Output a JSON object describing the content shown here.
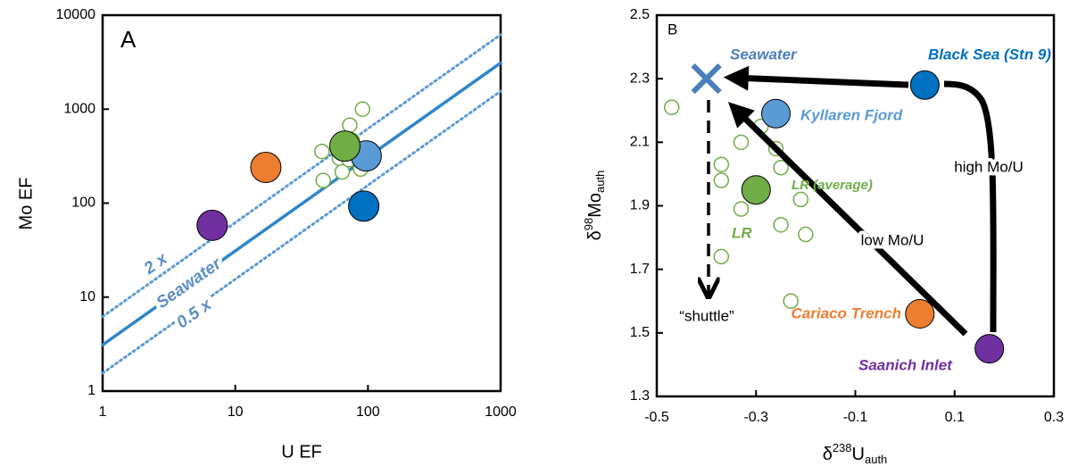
{
  "chart_data": [
    {
      "type": "scatter",
      "panel_label": "A",
      "log_scale": true,
      "xlabel": "U EF",
      "ylabel": "Mo EF",
      "xlim": [
        1,
        1000
      ],
      "ylim": [
        1,
        10000
      ],
      "xticks": [
        1,
        10,
        100,
        1000
      ],
      "yticks": [
        1,
        10,
        100,
        1000,
        10000
      ],
      "series": [
        {
          "name": "Seawater",
          "marker": "line",
          "line_style": "solid",
          "color": "#2e86c8",
          "x": [
            1,
            1000
          ],
          "values": [
            3.1,
            3100
          ]
        },
        {
          "name": "2 x",
          "marker": "line",
          "line_style": "dotted",
          "color": "#5b9bd5",
          "x": [
            1,
            1000
          ],
          "values": [
            6.2,
            6200
          ]
        },
        {
          "name": "0.5 x",
          "marker": "line",
          "line_style": "dotted",
          "color": "#5b9bd5",
          "x": [
            1,
            1000
          ],
          "values": [
            1.55,
            1550
          ]
        },
        {
          "marker": "circle",
          "color": "#7030a0",
          "x": [
            6.7
          ],
          "values": [
            58
          ]
        },
        {
          "marker": "circle",
          "color": "#ed7d31",
          "x": [
            17
          ],
          "values": [
            240
          ]
        },
        {
          "marker": "circle",
          "color": "#0070c0",
          "x": [
            93
          ],
          "values": [
            93
          ]
        },
        {
          "marker": "circle",
          "color": "#5b9bd5",
          "x": [
            97
          ],
          "values": [
            318
          ]
        },
        {
          "marker": "circle",
          "color": "#70ad47",
          "x": [
            67
          ],
          "values": [
            405
          ]
        },
        {
          "marker": "open-circle",
          "color": "#70ad47",
          "x": [
            45,
            46,
            61,
            64,
            76,
            73,
            91,
            88,
            72,
            59
          ],
          "values": [
            355,
            174,
            300,
            215,
            465,
            675,
            1000,
            230,
            290,
            425
          ]
        }
      ]
    },
    {
      "type": "scatter",
      "panel_label": "B",
      "log_scale": false,
      "xlabel": {
        "symbol": "δ",
        "sup": "238",
        "base": "U",
        "sub": "auth"
      },
      "ylabel": {
        "symbol": "δ",
        "sup": "98",
        "base": "Mo",
        "sub": "auth"
      },
      "xlim": [
        -0.5,
        0.3
      ],
      "ylim": [
        1.3,
        2.5
      ],
      "xticks": [
        -0.5,
        -0.3,
        -0.1,
        0.1,
        0.3
      ],
      "yticks": [
        1.3,
        1.5,
        1.7,
        1.9,
        2.1,
        2.3,
        2.5
      ],
      "series": [
        {
          "name": "Seawater",
          "marker": "x",
          "color": "#4a7ebb",
          "x": [
            -0.4
          ],
          "values": [
            2.3
          ]
        },
        {
          "name": "Black Sea (Stn 9)",
          "marker": "circle",
          "color": "#0070c0",
          "x": [
            0.04
          ],
          "values": [
            2.28
          ]
        },
        {
          "name": "Kyllaren Fjord",
          "marker": "circle",
          "color": "#5b9bd5",
          "x": [
            -0.26
          ],
          "values": [
            2.19
          ]
        },
        {
          "name": "LR (average)",
          "marker": "circle",
          "color": "#70ad47",
          "x": [
            -0.3
          ],
          "values": [
            1.95
          ]
        },
        {
          "name": "LR",
          "marker": "open-circle",
          "color": "#70ad47",
          "x": [
            -0.47,
            -0.33,
            -0.29,
            -0.26,
            -0.37,
            -0.37,
            -0.25,
            -0.33,
            -0.21,
            -0.25,
            -0.2,
            -0.37,
            -0.23
          ],
          "values": [
            2.21,
            2.1,
            2.15,
            2.08,
            2.03,
            1.98,
            2.02,
            1.89,
            1.92,
            1.84,
            1.81,
            1.74,
            1.6
          ]
        },
        {
          "name": "Cariaco Trench",
          "marker": "circle",
          "color": "#ed7d31",
          "x": [
            0.03
          ],
          "values": [
            1.56
          ]
        },
        {
          "name": "Saanich Inlet",
          "marker": "circle",
          "color": "#7030a0",
          "x": [
            0.17
          ],
          "values": [
            1.45
          ]
        }
      ],
      "annotations": [
        "high Mo/U",
        "low Mo/U",
        "“shuttle”"
      ]
    }
  ]
}
